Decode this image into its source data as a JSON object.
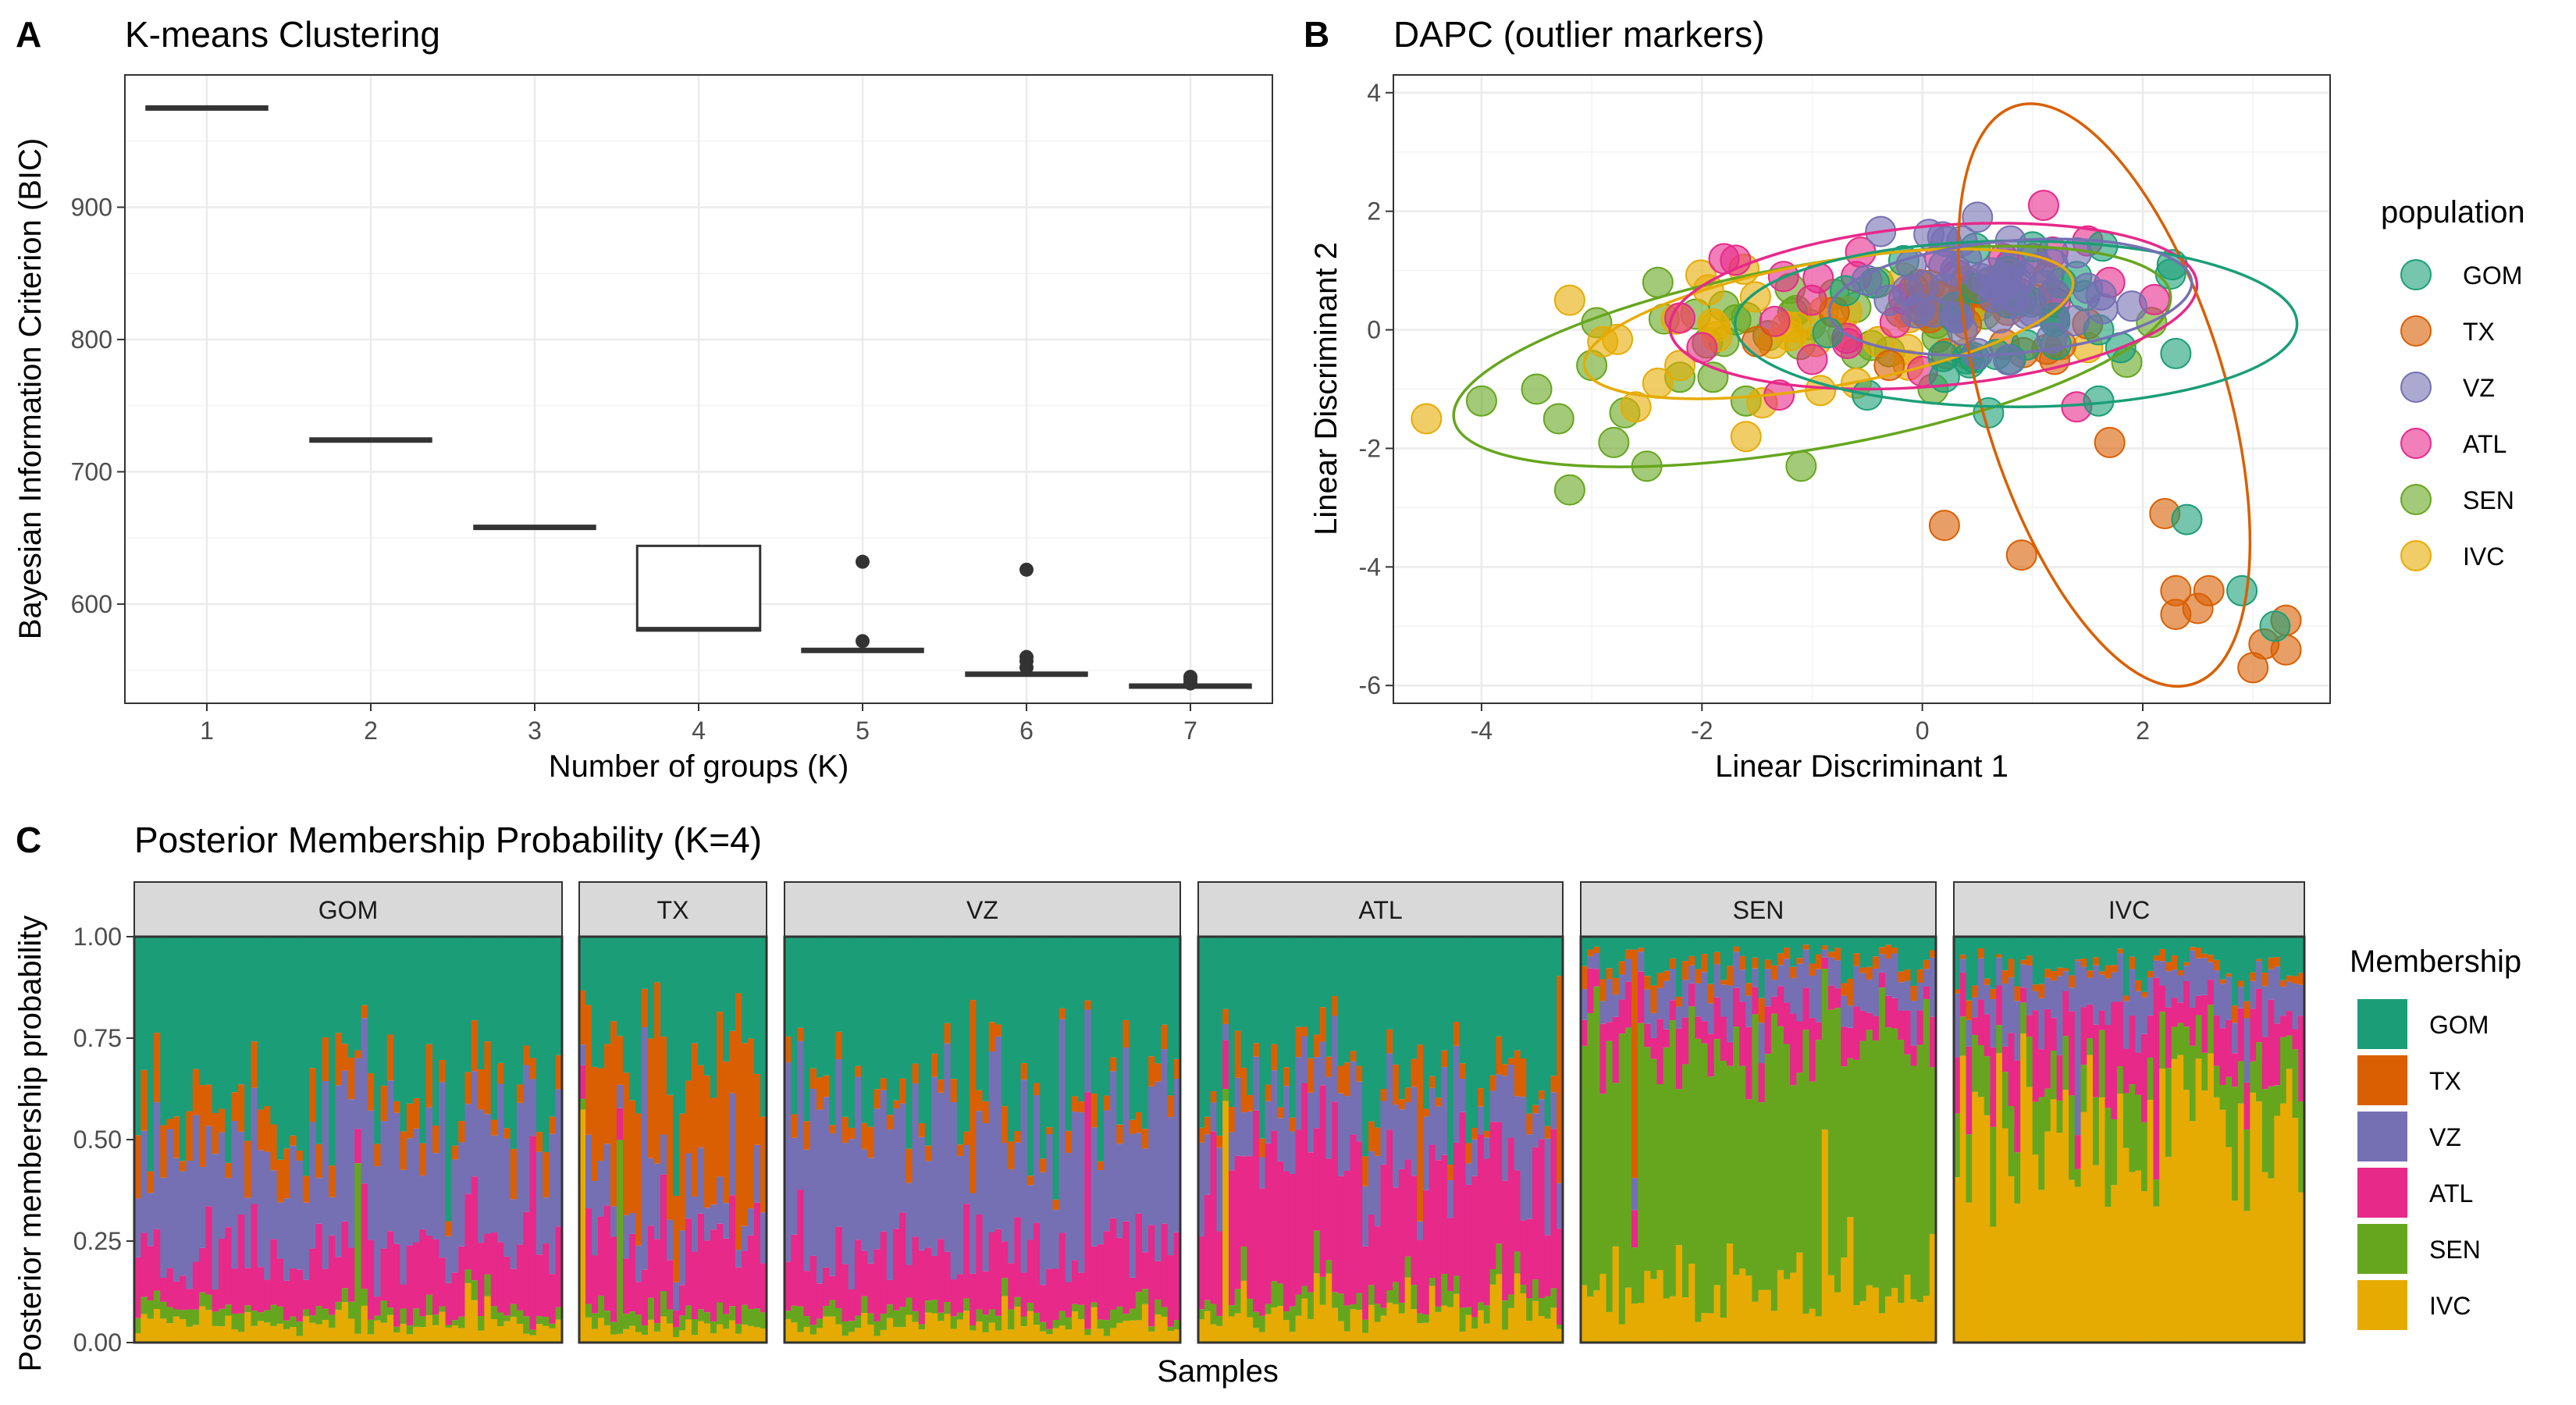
{
  "colors": {
    "GOM": "#1b9e77",
    "TX": "#d95f02",
    "VZ": "#7570b3",
    "ATL": "#e7298a",
    "SEN": "#66a61e",
    "IVC": "#e6ab02",
    "grid": "#ebebeb",
    "strip": "#d9d9d9"
  },
  "panels": {
    "A": {
      "tag": "A",
      "title": "K-means Clustering"
    },
    "B": {
      "tag": "B",
      "title": "DAPC (outlier markers)"
    },
    "C": {
      "tag": "C",
      "title": "Posterior Membership Probability (K=4)"
    }
  },
  "chart_data": [
    {
      "type": "box",
      "title": "K-means Clustering",
      "xlabel": "Number of groups (K)",
      "ylabel": "Bayesian Information Criterion (BIC)",
      "categories": [
        "1",
        "2",
        "3",
        "4",
        "5",
        "6",
        "7"
      ],
      "ylim": [
        525,
        1000
      ],
      "yticks": [
        600,
        700,
        800,
        900
      ],
      "boxes": [
        {
          "k": "1",
          "q1": 975,
          "median": 975,
          "q3": 975,
          "outliers": []
        },
        {
          "k": "2",
          "q1": 724,
          "median": 724,
          "q3": 724,
          "outliers": []
        },
        {
          "k": "3",
          "q1": 658,
          "median": 658,
          "q3": 658,
          "outliers": []
        },
        {
          "k": "4",
          "q1": 580,
          "median": 581,
          "q3": 644,
          "outliers": []
        },
        {
          "k": "5",
          "q1": 564,
          "median": 565,
          "q3": 566,
          "outliers": [
            572,
            632
          ]
        },
        {
          "k": "6",
          "q1": 546,
          "median": 547,
          "q3": 548,
          "outliers": [
            552,
            557,
            560,
            626
          ]
        },
        {
          "k": "7",
          "q1": 537,
          "median": 538,
          "q3": 539,
          "outliers": [
            540,
            543,
            545
          ]
        }
      ],
      "grid": true
    },
    {
      "type": "scatter",
      "title": "DAPC (outlier markers)",
      "xlabel": "Linear Discriminant 1",
      "ylabel": "Linear Discriminant 2",
      "xlim": [
        -4.8,
        3.7
      ],
      "ylim": [
        -6.3,
        4.3
      ],
      "xticks": [
        -4,
        -2,
        0,
        2
      ],
      "yticks": [
        -6,
        -4,
        -2,
        0,
        2,
        4
      ],
      "legend_title": "population",
      "legend_position": "right",
      "grid": true,
      "series": [
        {
          "name": "GOM",
          "center": [
            0.85,
            0.45
          ],
          "ellipse": {
            "cx": 0.85,
            "cy": 0.1,
            "rx": 2.55,
            "ry": 1.4,
            "angle": 0
          },
          "points": [
            [
              0.5,
              0.7
            ],
            [
              0.9,
              0.5
            ],
            [
              1.2,
              0.2
            ],
            [
              1.6,
              0
            ],
            [
              2.3,
              -0.4
            ],
            [
              2.4,
              -3.2
            ],
            [
              2.9,
              -4.4
            ],
            [
              3.2,
              -5
            ],
            [
              1.8,
              -0.3
            ],
            [
              1.6,
              -1.2
            ],
            [
              0.6,
              -1.4
            ],
            [
              0.2,
              -0.8
            ],
            [
              -0.5,
              -1.1
            ],
            [
              1.0,
              1.4
            ],
            [
              1.4,
              0.9
            ],
            [
              0.3,
              0.2
            ],
            [
              0.8,
              -0.5
            ]
          ]
        },
        {
          "name": "TX",
          "center": [
            0.6,
            0.2
          ],
          "ellipse": {
            "cx": 1.65,
            "cy": -1.1,
            "rx": 1.1,
            "ry": 5.1,
            "angle": -17
          },
          "points": [
            [
              0.2,
              -3.3
            ],
            [
              0.9,
              -3.8
            ],
            [
              1.7,
              -1.9
            ],
            [
              2.2,
              -3.1
            ],
            [
              2.3,
              -4.4
            ],
            [
              2.6,
              -4.4
            ],
            [
              2.5,
              -4.7
            ],
            [
              2.3,
              -4.8
            ],
            [
              3.1,
              -5.3
            ],
            [
              3.3,
              -4.9
            ],
            [
              3.3,
              -5.4
            ],
            [
              3.0,
              -5.7
            ],
            [
              1.2,
              -0.5
            ],
            [
              -0.8,
              0.3
            ],
            [
              -1.5,
              -0.2
            ],
            [
              0.4,
              0.1
            ],
            [
              1.5,
              0.1
            ],
            [
              -0.3,
              -0.6
            ]
          ]
        },
        {
          "name": "VZ",
          "center": [
            0.6,
            0.6
          ],
          "ellipse": {
            "cx": 0.8,
            "cy": 0.55,
            "rx": 1.65,
            "ry": 0.95,
            "angle": -5
          },
          "points": [
            [
              0.4,
              1.2
            ],
            [
              0.6,
              0.8
            ],
            [
              0.9,
              0.9
            ],
            [
              1.2,
              0.6
            ],
            [
              0.1,
              0.3
            ],
            [
              -0.1,
              1.1
            ],
            [
              0.5,
              1.9
            ],
            [
              1.4,
              1.3
            ],
            [
              1.9,
              0.4
            ],
            [
              0.7,
              0.2
            ],
            [
              0.2,
              0.7
            ],
            [
              1.0,
              0.3
            ],
            [
              0.8,
              1.5
            ],
            [
              -0.3,
              0.5
            ],
            [
              1.5,
              0.7
            ],
            [
              0.3,
              1.0
            ]
          ]
        },
        {
          "name": "ATL",
          "center": [
            0.3,
            0.5
          ],
          "ellipse": {
            "cx": 0.1,
            "cy": 0.4,
            "rx": 2.4,
            "ry": 1.35,
            "angle": -5
          },
          "points": [
            [
              1.1,
              2.1
            ],
            [
              1.5,
              1.5
            ],
            [
              -1.8,
              1.2
            ],
            [
              -2.2,
              0.2
            ],
            [
              1.4,
              -1.3
            ],
            [
              -1.3,
              -1.1
            ],
            [
              0.4,
              0.6
            ],
            [
              -0.6,
              0.9
            ],
            [
              0.8,
              1.1
            ],
            [
              1.7,
              0.8
            ],
            [
              -1.0,
              -0.5
            ],
            [
              0.0,
              -0.7
            ],
            [
              -2.0,
              -0.3
            ],
            [
              1.2,
              0.2
            ]
          ]
        },
        {
          "name": "SEN",
          "center": [
            -1.0,
            0.0
          ],
          "ellipse": {
            "cx": -1.0,
            "cy": -0.45,
            "rx": 3.3,
            "ry": 1.55,
            "angle": -10
          },
          "points": [
            [
              -4.0,
              -1.2
            ],
            [
              -3.2,
              -2.7
            ],
            [
              -3.0,
              -0.6
            ],
            [
              -2.8,
              -1.9
            ],
            [
              -2.5,
              -2.3
            ],
            [
              -2.2,
              -0.8
            ],
            [
              -1.8,
              0.4
            ],
            [
              -1.4,
              -0.1
            ],
            [
              -1.1,
              -2.3
            ],
            [
              -0.8,
              0.6
            ],
            [
              -0.4,
              0.8
            ],
            [
              -2.4,
              0.8
            ],
            [
              -3.3,
              -1.5
            ],
            [
              -1.6,
              -1.2
            ],
            [
              -0.6,
              -0.4
            ],
            [
              -2.7,
              -1.4
            ],
            [
              -1.9,
              -0.8
            ],
            [
              -0.2,
              0.3
            ],
            [
              -1.2,
              0.7
            ],
            [
              -3.5,
              -1.0
            ]
          ]
        },
        {
          "name": "IVC",
          "center": [
            -1.2,
            0.1
          ],
          "ellipse": {
            "cx": -0.85,
            "cy": 0.1,
            "rx": 2.25,
            "ry": 1.05,
            "angle": -10
          },
          "points": [
            [
              -4.5,
              -1.5
            ],
            [
              -3.2,
              0.5
            ],
            [
              -2.9,
              -0.2
            ],
            [
              -2.6,
              -1.3
            ],
            [
              -2.2,
              -0.6
            ],
            [
              -1.6,
              -1.8
            ],
            [
              -1.2,
              -0.1
            ],
            [
              -0.9,
              0.3
            ],
            [
              -0.4,
              -0.2
            ],
            [
              0.1,
              0.4
            ],
            [
              0.8,
              0.9
            ],
            [
              1.5,
              -0.3
            ],
            [
              -1.9,
              0.1
            ],
            [
              -2.4,
              -0.9
            ],
            [
              -0.6,
              -0.9
            ],
            [
              0.4,
              -0.4
            ]
          ]
        }
      ]
    },
    {
      "type": "stacked-bar",
      "title": "Posterior Membership Probability (K=4)",
      "xlabel": "Samples",
      "ylabel": "Posterior membership probability",
      "ylim": [
        0,
        1
      ],
      "yticks": [
        "0.00",
        "0.25",
        "0.50",
        "0.75",
        "1.00"
      ],
      "legend_title": "Membership",
      "legend": [
        "GOM",
        "TX",
        "VZ",
        "ATL",
        "SEN",
        "IVC"
      ],
      "facets": [
        {
          "name": "GOM",
          "n": 66,
          "mean": {
            "IVC": 0.05,
            "SEN": 0.03,
            "ATL": 0.15,
            "VZ": 0.27,
            "TX": 0.08,
            "GOM": 0.42
          }
        },
        {
          "name": "TX",
          "n": 30,
          "mean": {
            "IVC": 0.04,
            "SEN": 0.03,
            "ATL": 0.18,
            "VZ": 0.12,
            "TX": 0.3,
            "GOM": 0.33
          }
        },
        {
          "name": "VZ",
          "n": 62,
          "mean": {
            "IVC": 0.05,
            "SEN": 0.03,
            "ATL": 0.16,
            "VZ": 0.32,
            "TX": 0.05,
            "GOM": 0.39
          }
        },
        {
          "name": "ATL",
          "n": 60,
          "mean": {
            "IVC": 0.07,
            "SEN": 0.04,
            "ATL": 0.32,
            "VZ": 0.15,
            "TX": 0.05,
            "GOM": 0.37
          }
        },
        {
          "name": "SEN",
          "n": 56,
          "mean": {
            "IVC": 0.14,
            "SEN": 0.58,
            "ATL": 0.1,
            "VZ": 0.08,
            "TX": 0.03,
            "GOM": 0.07
          }
        },
        {
          "name": "IVC",
          "n": 58,
          "mean": {
            "IVC": 0.55,
            "SEN": 0.13,
            "ATL": 0.12,
            "VZ": 0.1,
            "TX": 0.02,
            "GOM": 0.08
          }
        }
      ]
    }
  ]
}
